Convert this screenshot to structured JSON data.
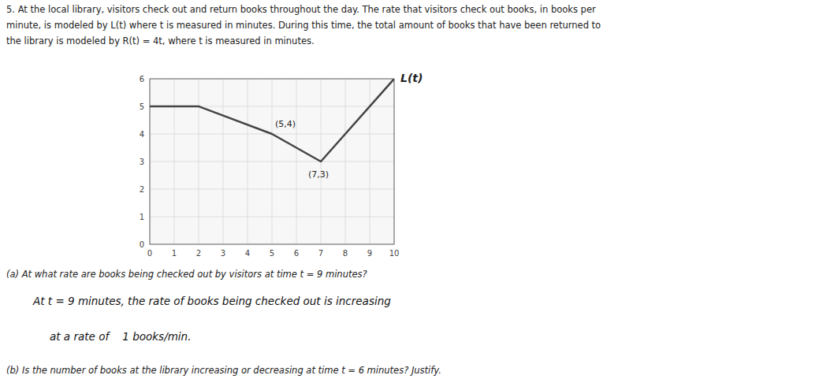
{
  "chart_data": {
    "type": "line",
    "x": [
      0,
      2,
      5,
      7,
      10
    ],
    "values": [
      5,
      5,
      4,
      3,
      6
    ],
    "color": "#444444",
    "xlim": [
      0,
      10
    ],
    "ylim": [
      0,
      6
    ],
    "xticks": [
      0,
      1,
      2,
      3,
      4,
      5,
      6,
      7,
      8,
      9,
      10
    ],
    "yticks": [
      0,
      1,
      2,
      3,
      4,
      5,
      6
    ],
    "grid": true,
    "annotations": [
      {
        "text": "L(t)",
        "x": 10,
        "y": 6
      },
      {
        "text": "(5,4)",
        "x": 5,
        "y": 4
      },
      {
        "text": "(7,3)",
        "x": 7,
        "y": 3
      }
    ],
    "problem": [
      "5. At the local library, visitors check out and return books throughout the day. The rate that visitors check out books, in books per",
      "minute, is modeled by L(t) where t is measured in minutes. During this time, the total amount of books that have been returned to",
      "the library is modeled by R(t) = 4t, where t is measured in minutes."
    ],
    "question_a": "(a) At what rate are books being checked out by visitors at time t = 9 minutes?",
    "answer_a": [
      "At t = 9 minutes, the rate of books being checked out is increasing",
      "at a rate of    1 books/min."
    ],
    "question_b": "(b) Is the number of books at the library increasing or decreasing at time t = 6 minutes? Justify."
  }
}
